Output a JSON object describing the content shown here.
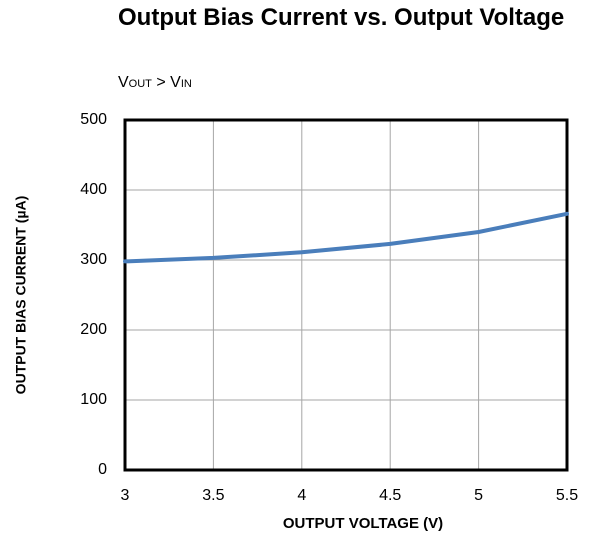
{
  "chart_data": {
    "type": "line",
    "title": "Output Bias Current vs. Output Voltage",
    "subtitle": [
      "V",
      "OUT",
      " > ",
      "V",
      "IN"
    ],
    "x_label": "OUTPUT VOLTAGE (V)",
    "y_label": "OUTPUT BIAS CURRENT (µA)",
    "x": [
      3,
      3.5,
      4,
      4.5,
      5,
      5.5
    ],
    "series": [
      {
        "name": "Output Bias Current",
        "color": "#4a7ebb",
        "values": [
          298,
          303,
          311,
          323,
          340,
          366
        ]
      }
    ],
    "xlim": [
      3,
      5.5
    ],
    "xticks": [
      3,
      3.5,
      4,
      4.5,
      5,
      5.5
    ],
    "ylim": [
      0,
      500
    ],
    "yticks": [
      0,
      100,
      200,
      300,
      400,
      500
    ],
    "grid": true
  }
}
